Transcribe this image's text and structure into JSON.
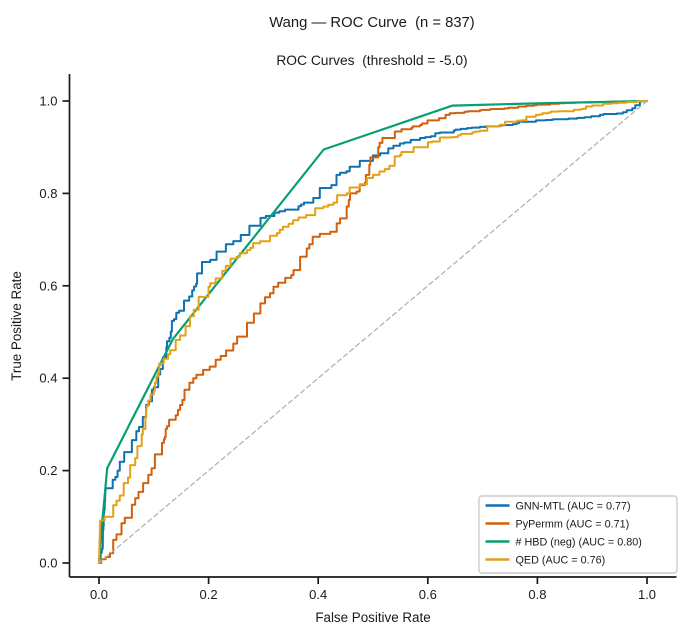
{
  "chart_data": {
    "type": "line",
    "title": "Wang — ROC Curve  (n = 837)",
    "subtitle": "ROC Curves  (threshold = -5.0)",
    "xlabel": "False Positive Rate",
    "ylabel": "True Positive Rate",
    "xlim": [
      -0.05,
      1.05
    ],
    "ylim": [
      -0.05,
      1.05
    ],
    "x_ticks": [
      0.0,
      0.2,
      0.4,
      0.6,
      0.8,
      1.0
    ],
    "y_ticks": [
      0.0,
      0.2,
      0.4,
      0.6,
      0.8,
      1.0
    ],
    "x_tick_labels": [
      "0.0",
      "0.2",
      "0.4",
      "0.6",
      "0.8",
      "1.0"
    ],
    "y_tick_labels": [
      "0.0",
      "0.2",
      "0.4",
      "0.6",
      "0.8",
      "1.0"
    ],
    "grid": false,
    "legend_position": "lower right",
    "series": [
      {
        "name": "GNN-MTL (AUC = 0.77)",
        "auc": 0.77,
        "color": "#0f72b0",
        "draw": "steps",
        "legend": true,
        "points": [
          [
            0,
            0
          ],
          [
            0.003,
            0.01
          ],
          [
            0.006,
            0.03
          ],
          [
            0.009,
            0.105
          ],
          [
            0.012,
            0.155
          ],
          [
            0.018,
            0.162
          ],
          [
            0.025,
            0.172
          ],
          [
            0.03,
            0.18
          ],
          [
            0.038,
            0.2
          ],
          [
            0.046,
            0.225
          ],
          [
            0.053,
            0.24
          ],
          [
            0.06,
            0.253
          ],
          [
            0.066,
            0.266
          ],
          [
            0.073,
            0.285
          ],
          [
            0.08,
            0.305
          ],
          [
            0.086,
            0.325
          ],
          [
            0.093,
            0.35
          ],
          [
            0.1,
            0.375
          ],
          [
            0.108,
            0.4
          ],
          [
            0.113,
            0.42
          ],
          [
            0.12,
            0.445
          ],
          [
            0.127,
            0.48
          ],
          [
            0.133,
            0.51
          ],
          [
            0.141,
            0.528
          ],
          [
            0.149,
            0.546
          ],
          [
            0.16,
            0.568
          ],
          [
            0.17,
            0.59
          ],
          [
            0.179,
            0.618
          ],
          [
            0.188,
            0.638
          ],
          [
            0.203,
            0.656
          ],
          [
            0.224,
            0.674
          ],
          [
            0.245,
            0.69
          ],
          [
            0.264,
            0.71
          ],
          [
            0.285,
            0.73
          ],
          [
            0.3,
            0.747
          ],
          [
            0.32,
            0.756
          ],
          [
            0.35,
            0.765
          ],
          [
            0.374,
            0.776
          ],
          [
            0.391,
            0.79
          ],
          [
            0.403,
            0.806
          ],
          [
            0.424,
            0.818
          ],
          [
            0.44,
            0.84
          ],
          [
            0.476,
            0.862
          ],
          [
            0.513,
            0.887
          ],
          [
            0.549,
            0.908
          ],
          [
            0.586,
            0.92
          ],
          [
            0.622,
            0.93
          ],
          [
            0.66,
            0.938
          ],
          [
            0.695,
            0.944
          ],
          [
            0.75,
            0.948
          ],
          [
            0.805,
            0.958
          ],
          [
            0.86,
            0.962
          ],
          [
            0.914,
            0.967
          ],
          [
            0.945,
            0.973
          ],
          [
            0.963,
            0.98
          ],
          [
            0.987,
            0.991
          ],
          [
            1,
            1
          ]
        ]
      },
      {
        "name": "PyPermm (AUC = 0.71)",
        "auc": 0.71,
        "color": "#d2610e",
        "draw": "steps",
        "legend": true,
        "points": [
          [
            0,
            0
          ],
          [
            0.004,
            0.008
          ],
          [
            0.012,
            0.013
          ],
          [
            0.02,
            0.021
          ],
          [
            0.026,
            0.035
          ],
          [
            0.032,
            0.05
          ],
          [
            0.036,
            0.062
          ],
          [
            0.041,
            0.075
          ],
          [
            0.047,
            0.086
          ],
          [
            0.053,
            0.098
          ],
          [
            0.06,
            0.111
          ],
          [
            0.066,
            0.126
          ],
          [
            0.072,
            0.14
          ],
          [
            0.078,
            0.154
          ],
          [
            0.084,
            0.173
          ],
          [
            0.09,
            0.187
          ],
          [
            0.096,
            0.205
          ],
          [
            0.102,
            0.22
          ],
          [
            0.108,
            0.235
          ],
          [
            0.115,
            0.25
          ],
          [
            0.12,
            0.268
          ],
          [
            0.124,
            0.29
          ],
          [
            0.128,
            0.31
          ],
          [
            0.14,
            0.32
          ],
          [
            0.148,
            0.342
          ],
          [
            0.156,
            0.362
          ],
          [
            0.165,
            0.375
          ],
          [
            0.172,
            0.39
          ],
          [
            0.178,
            0.4
          ],
          [
            0.19,
            0.418
          ],
          [
            0.202,
            0.425
          ],
          [
            0.213,
            0.435
          ],
          [
            0.222,
            0.44
          ],
          [
            0.232,
            0.448
          ],
          [
            0.245,
            0.46
          ],
          [
            0.252,
            0.475
          ],
          [
            0.26,
            0.49
          ],
          [
            0.27,
            0.505
          ],
          [
            0.278,
            0.52
          ],
          [
            0.288,
            0.54
          ],
          [
            0.3,
            0.562
          ],
          [
            0.312,
            0.584
          ],
          [
            0.327,
            0.598
          ],
          [
            0.34,
            0.617
          ],
          [
            0.355,
            0.634
          ],
          [
            0.367,
            0.65
          ],
          [
            0.379,
            0.663
          ],
          [
            0.39,
            0.69
          ],
          [
            0.403,
            0.706
          ],
          [
            0.422,
            0.717
          ],
          [
            0.44,
            0.735
          ],
          [
            0.452,
            0.76
          ],
          [
            0.458,
            0.786
          ],
          [
            0.47,
            0.8
          ],
          [
            0.478,
            0.818
          ],
          [
            0.487,
            0.84
          ],
          [
            0.495,
            0.862
          ],
          [
            0.503,
            0.878
          ],
          [
            0.512,
            0.9
          ],
          [
            0.53,
            0.92
          ],
          [
            0.54,
            0.934
          ],
          [
            0.57,
            0.942
          ],
          [
            0.586,
            0.948
          ],
          [
            0.61,
            0.958
          ],
          [
            0.64,
            0.97
          ],
          [
            0.667,
            0.976
          ],
          [
            0.695,
            0.98
          ],
          [
            0.74,
            0.984
          ],
          [
            0.78,
            0.988
          ],
          [
            0.84,
            0.995
          ],
          [
            0.9,
            0.997
          ],
          [
            1,
            1
          ]
        ]
      },
      {
        "name": "# HBD (neg) (AUC = 0.80)",
        "auc": 0.8,
        "color": "#089e73",
        "draw": "line",
        "legend": true,
        "points": [
          [
            0,
            0
          ],
          [
            0.006,
            0.09
          ],
          [
            0.015,
            0.205
          ],
          [
            0.135,
            0.485
          ],
          [
            0.41,
            0.895
          ],
          [
            0.645,
            0.99
          ],
          [
            0.8,
            0.995
          ],
          [
            1,
            1
          ]
        ]
      },
      {
        "name": "QED (AUC = 0.76)",
        "auc": 0.76,
        "color": "#e3a117",
        "draw": "steps",
        "legend": true,
        "points": [
          [
            0,
            0
          ],
          [
            0.002,
            0.08
          ],
          [
            0.01,
            0.092
          ],
          [
            0.017,
            0.1
          ],
          [
            0.026,
            0.114
          ],
          [
            0.032,
            0.125
          ],
          [
            0.038,
            0.135
          ],
          [
            0.042,
            0.146
          ],
          [
            0.045,
            0.16
          ],
          [
            0.048,
            0.173
          ],
          [
            0.053,
            0.185
          ],
          [
            0.057,
            0.198
          ],
          [
            0.06,
            0.212
          ],
          [
            0.066,
            0.227
          ],
          [
            0.07,
            0.241
          ],
          [
            0.075,
            0.253
          ],
          [
            0.078,
            0.266
          ],
          [
            0.082,
            0.29
          ],
          [
            0.086,
            0.317
          ],
          [
            0.09,
            0.34
          ],
          [
            0.096,
            0.365
          ],
          [
            0.102,
            0.39
          ],
          [
            0.108,
            0.412
          ],
          [
            0.118,
            0.432
          ],
          [
            0.13,
            0.452
          ],
          [
            0.14,
            0.47
          ],
          [
            0.148,
            0.483
          ],
          [
            0.158,
            0.505
          ],
          [
            0.166,
            0.526
          ],
          [
            0.173,
            0.548
          ],
          [
            0.182,
            0.562
          ],
          [
            0.19,
            0.576
          ],
          [
            0.203,
            0.598
          ],
          [
            0.213,
            0.616
          ],
          [
            0.225,
            0.632
          ],
          [
            0.24,
            0.65
          ],
          [
            0.257,
            0.663
          ],
          [
            0.276,
            0.677
          ],
          [
            0.294,
            0.692
          ],
          [
            0.312,
            0.703
          ],
          [
            0.33,
            0.714
          ],
          [
            0.346,
            0.728
          ],
          [
            0.364,
            0.742
          ],
          [
            0.385,
            0.753
          ],
          [
            0.403,
            0.768
          ],
          [
            0.428,
            0.78
          ],
          [
            0.452,
            0.8
          ],
          [
            0.476,
            0.82
          ],
          [
            0.5,
            0.84
          ],
          [
            0.53,
            0.86
          ],
          [
            0.549,
            0.88
          ],
          [
            0.586,
            0.9
          ],
          [
            0.622,
            0.919
          ],
          [
            0.66,
            0.928
          ],
          [
            0.695,
            0.934
          ],
          [
            0.72,
            0.945
          ],
          [
            0.75,
            0.955
          ],
          [
            0.78,
            0.963
          ],
          [
            0.805,
            0.97
          ],
          [
            0.85,
            0.978
          ],
          [
            0.9,
            0.988
          ],
          [
            0.93,
            0.994
          ],
          [
            1,
            1
          ]
        ]
      },
      {
        "name": "chance",
        "color": "#b3b3b3",
        "draw": "dashed",
        "legend": false,
        "points": [
          [
            0,
            0
          ],
          [
            1,
            1
          ]
        ]
      }
    ]
  },
  "colors": {
    "axis": "#1a1a1a",
    "text": "#1a1a1a",
    "chance_line": "#b3b3b3",
    "legend_border": "#cccccc",
    "background": "#ffffff"
  }
}
